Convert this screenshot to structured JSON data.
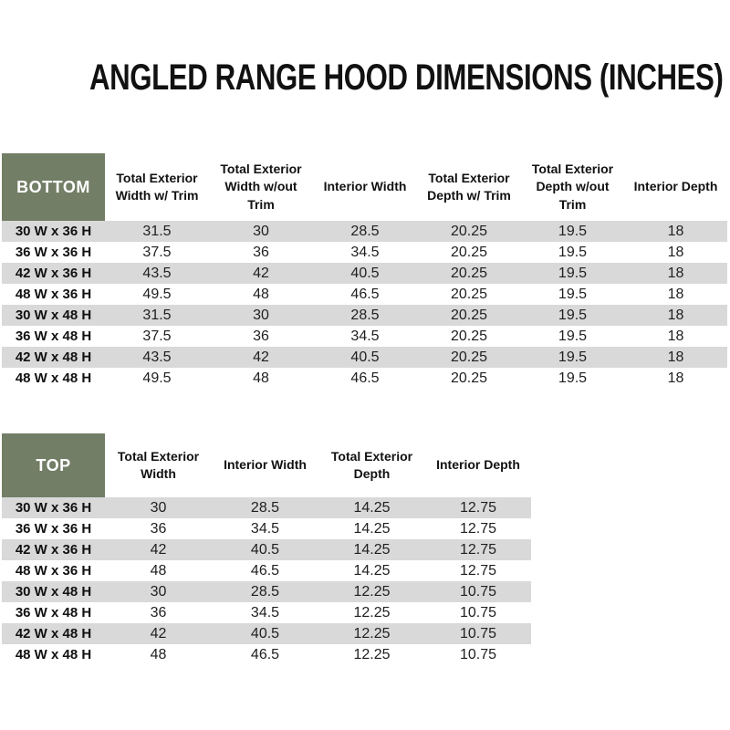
{
  "page_title": "ANGLED RANGE HOOD DIMENSIONS (INCHES)",
  "colors": {
    "header_green": "#727E66",
    "corner_text": "#FFFFFF",
    "stripe_gray": "#D9D9D9",
    "text": "#1F1F1F",
    "background": "#FFFFFF"
  },
  "tables": [
    {
      "id": "bottom",
      "corner_label": "BOTTOM",
      "columns": [
        "Total Exterior Width w/ Trim",
        "Total Exterior Width w/out Trim",
        "Interior Width",
        "Total Exterior Depth w/ Trim",
        "Total Exterior Depth w/out Trim",
        "Interior Depth"
      ],
      "rows": [
        {
          "label": "30 W x 36 H",
          "values": [
            "31.5",
            "30",
            "28.5",
            "20.25",
            "19.5",
            "18"
          ]
        },
        {
          "label": "36 W x 36 H",
          "values": [
            "37.5",
            "36",
            "34.5",
            "20.25",
            "19.5",
            "18"
          ]
        },
        {
          "label": "42 W x 36 H",
          "values": [
            "43.5",
            "42",
            "40.5",
            "20.25",
            "19.5",
            "18"
          ]
        },
        {
          "label": "48 W x 36 H",
          "values": [
            "49.5",
            "48",
            "46.5",
            "20.25",
            "19.5",
            "18"
          ]
        },
        {
          "label": "30 W x 48 H",
          "values": [
            "31.5",
            "30",
            "28.5",
            "20.25",
            "19.5",
            "18"
          ]
        },
        {
          "label": "36 W x 48 H",
          "values": [
            "37.5",
            "36",
            "34.5",
            "20.25",
            "19.5",
            "18"
          ]
        },
        {
          "label": "42 W x 48 H",
          "values": [
            "43.5",
            "42",
            "40.5",
            "20.25",
            "19.5",
            "18"
          ]
        },
        {
          "label": "48 W x 48 H",
          "values": [
            "49.5",
            "48",
            "46.5",
            "20.25",
            "19.5",
            "18"
          ]
        }
      ]
    },
    {
      "id": "top",
      "corner_label": "TOP",
      "columns": [
        "Total Exterior Width",
        "Interior Width",
        "Total Exterior Depth",
        "Interior Depth"
      ],
      "rows": [
        {
          "label": "30 W x 36 H",
          "values": [
            "30",
            "28.5",
            "14.25",
            "12.75"
          ]
        },
        {
          "label": "36 W x 36 H",
          "values": [
            "36",
            "34.5",
            "14.25",
            "12.75"
          ]
        },
        {
          "label": "42 W x 36 H",
          "values": [
            "42",
            "40.5",
            "14.25",
            "12.75"
          ]
        },
        {
          "label": "48 W x 36 H",
          "values": [
            "48",
            "46.5",
            "14.25",
            "12.75"
          ]
        },
        {
          "label": "30 W x 48 H",
          "values": [
            "30",
            "28.5",
            "12.25",
            "10.75"
          ]
        },
        {
          "label": "36 W x 48 H",
          "values": [
            "36",
            "34.5",
            "12.25",
            "10.75"
          ]
        },
        {
          "label": "42 W x 48 H",
          "values": [
            "42",
            "40.5",
            "12.25",
            "10.75"
          ]
        },
        {
          "label": "48 W x 48 H",
          "values": [
            "48",
            "46.5",
            "12.25",
            "10.75"
          ]
        }
      ]
    }
  ]
}
